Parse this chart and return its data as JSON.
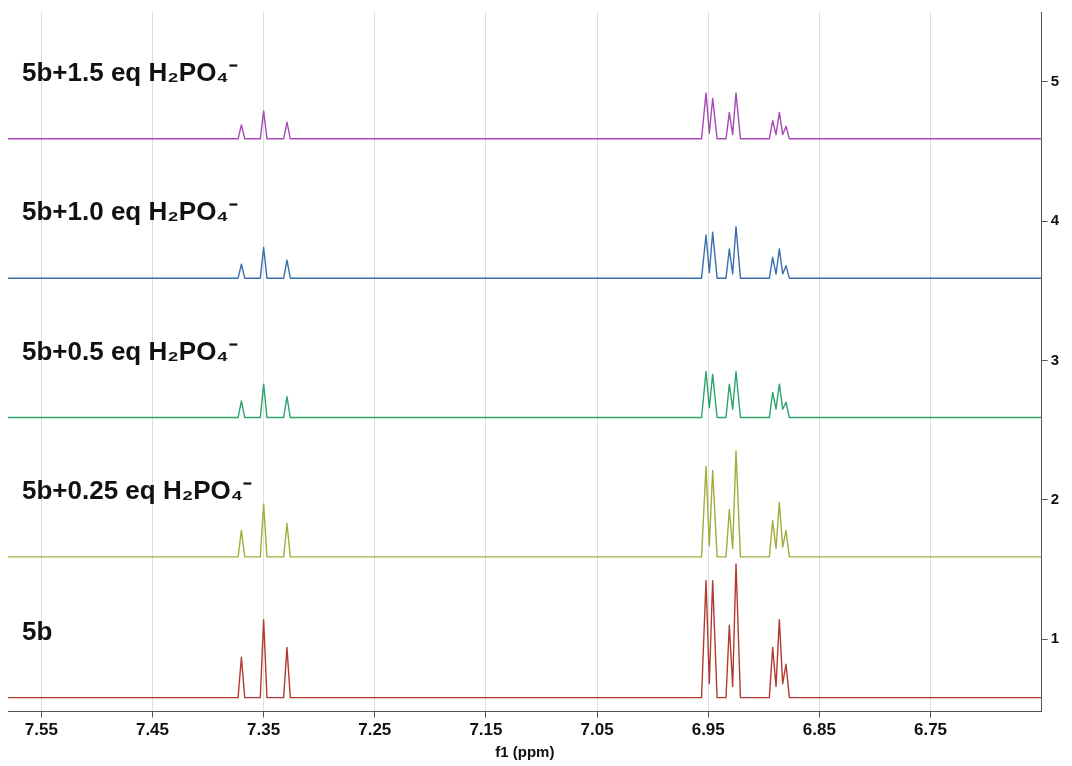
{
  "chart_data": {
    "type": "line",
    "xlabel": "f1 (ppm)",
    "xlim": [
      7.58,
      6.65
    ],
    "xticks": [
      7.55,
      7.45,
      7.35,
      7.25,
      7.15,
      7.05,
      6.95,
      6.85,
      6.75
    ],
    "ylim": [
      0.48,
      5.5
    ],
    "yticks": [
      1,
      2,
      3,
      4,
      5
    ],
    "grid": "x",
    "legend": false,
    "marker": "none",
    "line_style": "solid",
    "x": [
      7.58,
      7.373,
      7.37,
      7.367,
      7.353,
      7.35,
      7.347,
      7.332,
      7.329,
      7.326,
      6.956,
      6.952,
      6.949,
      6.946,
      6.942,
      6.934,
      6.931,
      6.928,
      6.925,
      6.921,
      6.895,
      6.892,
      6.889,
      6.886,
      6.883,
      6.88,
      6.877,
      6.65
    ],
    "series": [
      {
        "name": "5b",
        "color": "#b03a2e",
        "values": [
          0.58,
          0.58,
          0.87,
          0.58,
          0.58,
          1.14,
          0.58,
          0.58,
          0.94,
          0.58,
          0.58,
          1.42,
          0.68,
          1.42,
          0.58,
          0.58,
          1.1,
          0.66,
          1.54,
          0.58,
          0.58,
          0.94,
          0.66,
          1.14,
          0.68,
          0.82,
          0.58,
          0.58
        ]
      },
      {
        "name": "5b+0.25 eq H₂PO₄⁻",
        "color": "#a3ad3c",
        "values": [
          1.59,
          1.59,
          1.78,
          1.59,
          1.59,
          1.97,
          1.59,
          1.59,
          1.83,
          1.59,
          1.59,
          2.24,
          1.67,
          2.21,
          1.59,
          1.59,
          1.93,
          1.65,
          2.35,
          1.59,
          1.59,
          1.85,
          1.65,
          1.98,
          1.66,
          1.78,
          1.59,
          1.59
        ]
      },
      {
        "name": "5b+0.5 eq H₂PO₄⁻",
        "color": "#2ea36c",
        "values": [
          2.59,
          2.59,
          2.71,
          2.59,
          2.59,
          2.83,
          2.59,
          2.59,
          2.74,
          2.59,
          2.59,
          2.92,
          2.66,
          2.9,
          2.59,
          2.59,
          2.83,
          2.65,
          2.92,
          2.59,
          2.59,
          2.77,
          2.65,
          2.83,
          2.65,
          2.7,
          2.59,
          2.59
        ]
      },
      {
        "name": "5b+1.0 eq H₂PO₄⁻",
        "color": "#3a6fad",
        "values": [
          3.59,
          3.59,
          3.69,
          3.59,
          3.59,
          3.81,
          3.59,
          3.59,
          3.72,
          3.59,
          3.59,
          3.9,
          3.63,
          3.92,
          3.59,
          3.59,
          3.8,
          3.62,
          3.96,
          3.59,
          3.59,
          3.74,
          3.62,
          3.8,
          3.62,
          3.68,
          3.59,
          3.59
        ]
      },
      {
        "name": "5b+1.5 eq H₂PO₄⁻",
        "color": "#a64bb5",
        "values": [
          4.59,
          4.59,
          4.69,
          4.59,
          4.59,
          4.79,
          4.59,
          4.59,
          4.71,
          4.59,
          4.59,
          4.92,
          4.63,
          4.88,
          4.59,
          4.59,
          4.78,
          4.62,
          4.92,
          4.59,
          4.59,
          4.72,
          4.62,
          4.78,
          4.62,
          4.68,
          4.59,
          4.59
        ]
      }
    ]
  }
}
